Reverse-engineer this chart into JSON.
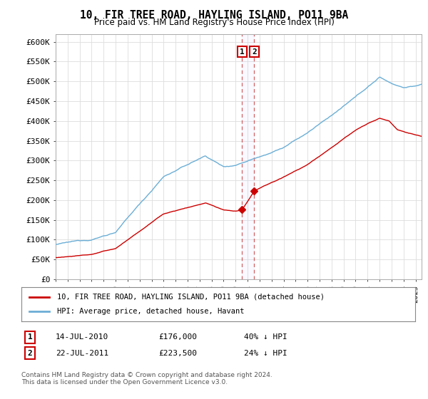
{
  "title": "10, FIR TREE ROAD, HAYLING ISLAND, PO11 9BA",
  "subtitle": "Price paid vs. HM Land Registry's House Price Index (HPI)",
  "ylabel_ticks": [
    "£0",
    "£50K",
    "£100K",
    "£150K",
    "£200K",
    "£250K",
    "£300K",
    "£350K",
    "£400K",
    "£450K",
    "£500K",
    "£550K",
    "£600K"
  ],
  "ylim": [
    0,
    620000
  ],
  "ytick_vals": [
    0,
    50000,
    100000,
    150000,
    200000,
    250000,
    300000,
    350000,
    400000,
    450000,
    500000,
    550000,
    600000
  ],
  "hpi_color": "#6baed6",
  "price_color": "#cc0000",
  "marker1_year": 2010.54,
  "marker2_year": 2011.55,
  "marker1_price": 176000,
  "marker2_price": 223500,
  "legend_entry1": "10, FIR TREE ROAD, HAYLING ISLAND, PO11 9BA (detached house)",
  "legend_entry2": "HPI: Average price, detached house, Havant",
  "footnote": "Contains HM Land Registry data © Crown copyright and database right 2024.\nThis data is licensed under the Open Government Licence v3.0.",
  "background_color": "#ffffff",
  "grid_color": "#dddddd",
  "xlim_start": 1995,
  "xlim_end": 2025.5
}
